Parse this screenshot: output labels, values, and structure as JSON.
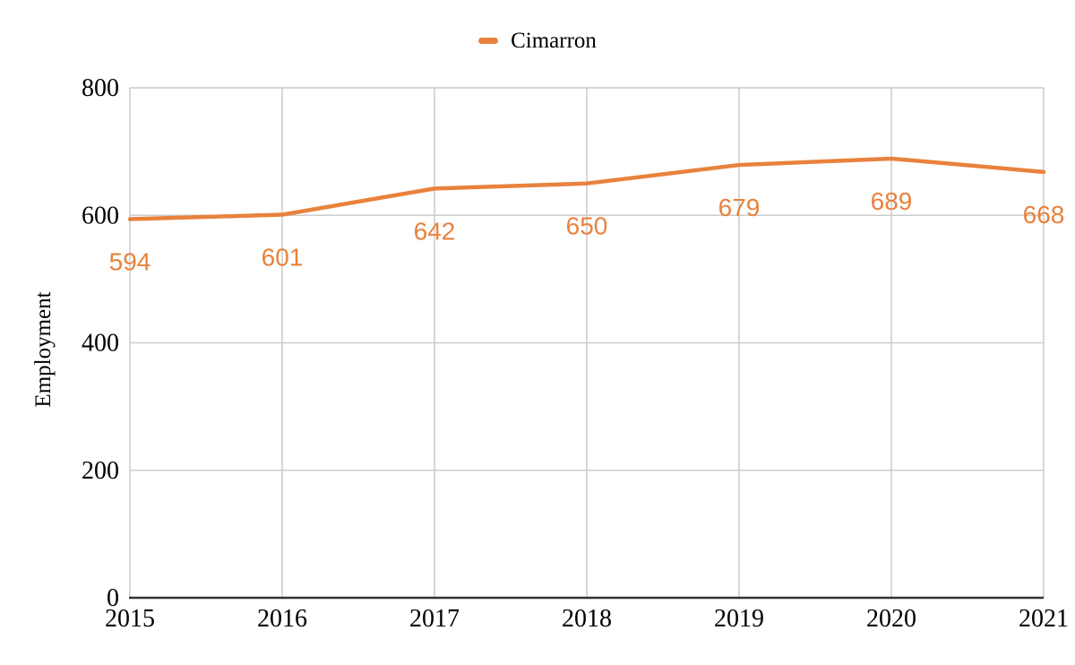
{
  "legend": {
    "label": "Cimarron"
  },
  "chart_data": {
    "type": "line",
    "title": "",
    "categories": [
      "2015",
      "2016",
      "2017",
      "2018",
      "2019",
      "2020",
      "2021"
    ],
    "series": [
      {
        "name": "Cimarron",
        "values": [
          594,
          601,
          642,
          650,
          679,
          689,
          668
        ]
      }
    ],
    "data_labels": [
      594,
      601,
      642,
      650,
      679,
      689,
      668
    ],
    "xlabel": "",
    "ylabel": "Employment",
    "ylim": [
      0,
      800
    ],
    "yticks": [
      0,
      200,
      400,
      600,
      800
    ],
    "grid": true,
    "legend_position": "top-center",
    "colors": {
      "series": "#E8823D",
      "data_label": "#E8823D",
      "grid": "#CCCCCC",
      "axis": "#333333",
      "text": "#000000"
    }
  }
}
